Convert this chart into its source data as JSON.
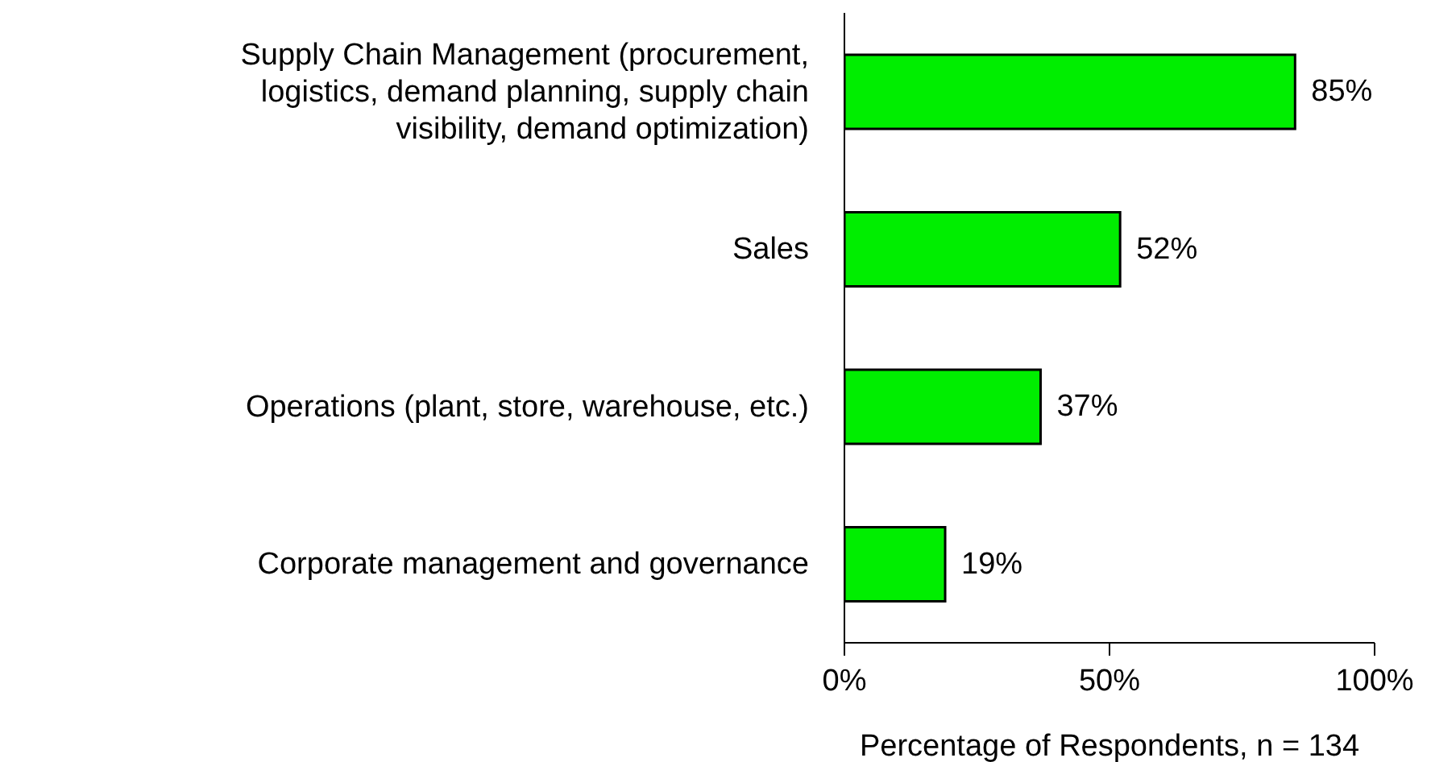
{
  "chart_data": {
    "type": "bar",
    "orientation": "horizontal",
    "xlabel": "Percentage of Respondents, n = 134",
    "categories": [
      "Supply Chain Management (procurement, logistics, demand planning, supply chain visibility, demand optimization)",
      "Sales",
      "Operations (plant, store, warehouse, etc.)",
      "Corporate management and governance"
    ],
    "values": [
      85,
      52,
      37,
      19
    ],
    "color": "#00ee00",
    "value_labels": [
      "85%",
      "52%",
      "37%",
      "19%"
    ],
    "xlim": [
      0,
      100
    ],
    "xticks": [
      {
        "value": 0,
        "label": "0%"
      },
      {
        "value": 50,
        "label": "50%"
      },
      {
        "value": 100,
        "label": "100%"
      }
    ],
    "grid": false
  }
}
